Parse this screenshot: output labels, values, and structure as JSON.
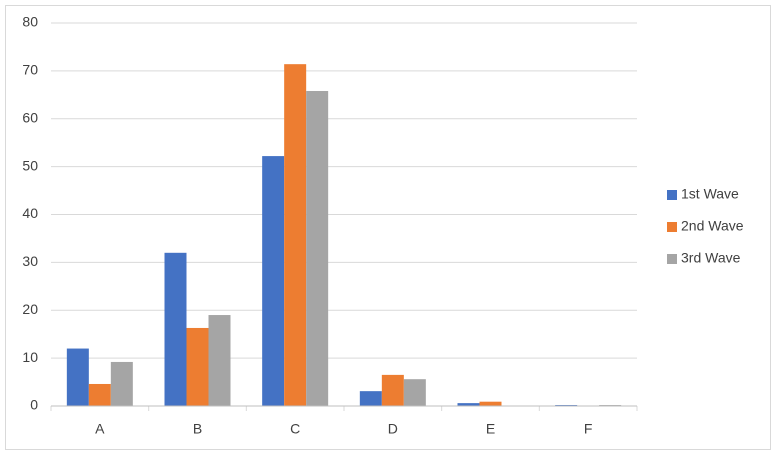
{
  "chart_data": {
    "type": "bar",
    "categories": [
      "A",
      "B",
      "C",
      "D",
      "E",
      "F"
    ],
    "series": [
      {
        "name": "1st Wave",
        "color": "#4472c4",
        "values": [
          12,
          32,
          52.2,
          3.1,
          0.6,
          0.2
        ]
      },
      {
        "name": "2nd Wave",
        "color": "#ed7d31",
        "values": [
          4.6,
          16.3,
          71.4,
          6.5,
          0.9,
          0
        ]
      },
      {
        "name": "3rd Wave",
        "color": "#a5a5a5",
        "values": [
          9.2,
          19,
          65.8,
          5.6,
          0,
          0.2
        ]
      }
    ],
    "ylim": [
      0,
      80
    ],
    "yticks": [
      0,
      10,
      20,
      30,
      40,
      50,
      60,
      70,
      80
    ],
    "grid": true,
    "legend": "right"
  }
}
